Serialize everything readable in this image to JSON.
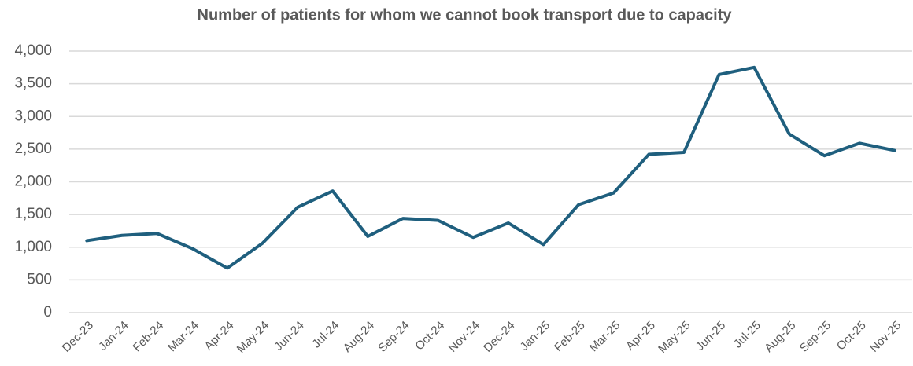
{
  "chart_data": {
    "type": "line",
    "title": "Number of patients for whom we cannot book transport due to capacity",
    "categories": [
      "Dec-23",
      "Jan-24",
      "Feb-24",
      "Mar-24",
      "Apr-24",
      "May-24",
      "Jun-24",
      "Jul-24",
      "Aug-24",
      "Sep-24",
      "Oct-24",
      "Nov-24",
      "Dec-24",
      "Jan-25",
      "Feb-25",
      "Mar-25",
      "Apr-25",
      "May-25",
      "Jun-25",
      "Jul-25",
      "Aug-25",
      "Sep-25",
      "Oct-25",
      "Nov-25"
    ],
    "values": [
      1100,
      1180,
      1210,
      980,
      680,
      1060,
      1610,
      1860,
      1165,
      1440,
      1410,
      1150,
      1370,
      1040,
      1650,
      1830,
      2420,
      2450,
      3640,
      3750,
      2730,
      2400,
      2590,
      2480
    ],
    "color": "#1f5f7e",
    "ylim": [
      0,
      4000
    ],
    "yticks": [
      0,
      500,
      {
        "value": 1000,
        "label": "1,000"
      },
      {
        "value": 1500,
        "label": "1,500"
      },
      {
        "value": 2000,
        "label": "2,000"
      },
      {
        "value": 2500,
        "label": "2,500"
      },
      {
        "value": 3000,
        "label": "3,000"
      },
      {
        "value": 3500,
        "label": "3,500"
      },
      {
        "value": 4000,
        "label": "4,000"
      }
    ],
    "grid": true
  }
}
